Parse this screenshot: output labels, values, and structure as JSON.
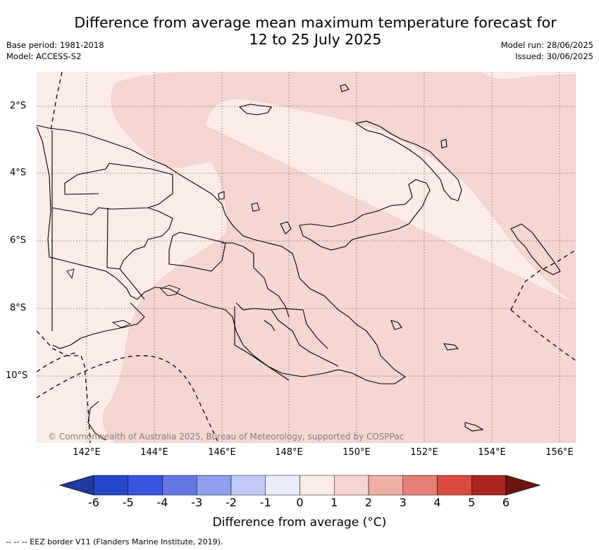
{
  "title_line1": "Difference from average mean maximum temperature forecast for",
  "title_line2": "12 to 25 July 2025",
  "meta_left": [
    "Base period: 1981-2018",
    "Model: ACCESS-S2"
  ],
  "meta_right": [
    "Model run: 28/06/2025",
    "Issued: 30/06/2025"
  ],
  "lat_labels": [
    "2°S",
    "4°S",
    "6°S",
    "8°S",
    "10°S"
  ],
  "lon_labels": [
    "142°E",
    "144°E",
    "146°E",
    "148°E",
    "150°E",
    "152°E",
    "154°E",
    "156°E"
  ],
  "copyright": "© Commonwealth of Australia 2025, Bureau of Meteorology, supported by COSPPac",
  "colorbar": {
    "ticks": [
      "-6",
      "-5",
      "-4",
      "-3",
      "-2",
      "-1",
      "0",
      "1",
      "2",
      "3",
      "4",
      "5",
      "6"
    ],
    "colors": [
      "#1f3b9e",
      "#2547c9",
      "#3a55e0",
      "#6577e6",
      "#8f9fee",
      "#c0c8f6",
      "#e8ecfb",
      "#fdebe8",
      "#f6d5d2",
      "#f0aea6",
      "#e67e75",
      "#da4a3e",
      "#ab2520",
      "#6e1512"
    ],
    "title": "Difference from average (°C)"
  },
  "footnote": "--  --  -- EEZ border V11 (Flanders Marine Institute, 2019).",
  "colors": {
    "anomaly_0_1": "#fcebe8",
    "anomaly_1_2": "#f5d6d2",
    "coastline": "#000000",
    "grid": "#555555"
  }
}
